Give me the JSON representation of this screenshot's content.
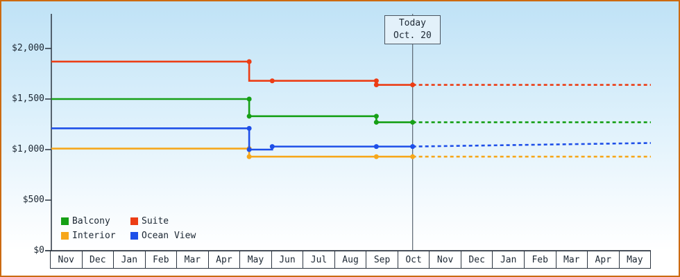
{
  "chart_data": {
    "type": "line",
    "subtype": "step",
    "title": "",
    "grid": false,
    "ylim": [
      0,
      2000
    ],
    "ytick_values": [
      0,
      500,
      1000,
      1500,
      2000
    ],
    "ytick_labels": [
      "$0",
      "$500",
      "$1,000",
      "$1,500",
      "$2,000"
    ],
    "x_months": [
      "Nov",
      "Dec",
      "Jan",
      "Feb",
      "Mar",
      "Apr",
      "May",
      "Jun",
      "Jul",
      "Aug",
      "Sep",
      "Oct",
      "Nov",
      "Dec",
      "Jan",
      "Feb",
      "Mar",
      "Apr",
      "May"
    ],
    "today": {
      "label_line1": "Today",
      "label_line2": "Oct. 20",
      "x_month_index": 11.45
    },
    "axis_color": "#2b3440",
    "today_line_color": "#5a6570",
    "series": [
      {
        "name": "Suite",
        "color": "#ec3d15",
        "solid_points": [
          [
            0,
            1870
          ],
          [
            6.27,
            1870
          ],
          [
            6.27,
            1680
          ],
          [
            10.3,
            1680
          ],
          [
            10.3,
            1640
          ],
          [
            11.45,
            1640
          ]
        ],
        "markers": [
          [
            6.27,
            1870
          ],
          [
            7.0,
            1680
          ],
          [
            10.3,
            1680
          ],
          [
            10.3,
            1640
          ],
          [
            11.45,
            1640
          ]
        ],
        "forecast": [
          [
            11.45,
            1640
          ],
          [
            19,
            1640
          ]
        ]
      },
      {
        "name": "Balcony",
        "color": "#16a016",
        "solid_points": [
          [
            0,
            1500
          ],
          [
            6.27,
            1500
          ],
          [
            6.27,
            1330
          ],
          [
            10.3,
            1330
          ],
          [
            10.3,
            1270
          ],
          [
            11.45,
            1270
          ]
        ],
        "markers": [
          [
            6.27,
            1500
          ],
          [
            6.27,
            1330
          ],
          [
            10.3,
            1330
          ],
          [
            10.3,
            1270
          ],
          [
            11.45,
            1270
          ]
        ],
        "forecast": [
          [
            11.45,
            1270
          ],
          [
            19,
            1270
          ]
        ]
      },
      {
        "name": "Interior",
        "color": "#f6a71b",
        "solid_points": [
          [
            0,
            1010
          ],
          [
            6.27,
            1010
          ],
          [
            6.27,
            930
          ],
          [
            10.3,
            930
          ],
          [
            11.45,
            930
          ]
        ],
        "markers": [
          [
            6.27,
            1010
          ],
          [
            6.27,
            930
          ],
          [
            10.3,
            930
          ],
          [
            11.45,
            930
          ]
        ],
        "forecast": [
          [
            11.45,
            930
          ],
          [
            19,
            930
          ]
        ]
      },
      {
        "name": "Ocean View",
        "color": "#1e4fe8",
        "solid_points": [
          [
            0,
            1210
          ],
          [
            6.27,
            1210
          ],
          [
            6.27,
            1000
          ],
          [
            7.0,
            1000
          ],
          [
            7.0,
            1030
          ],
          [
            10.3,
            1030
          ],
          [
            11.45,
            1030
          ]
        ],
        "markers": [
          [
            6.27,
            1210
          ],
          [
            6.27,
            1000
          ],
          [
            7.0,
            1030
          ],
          [
            10.3,
            1030
          ],
          [
            11.45,
            1030
          ]
        ],
        "forecast": [
          [
            11.45,
            1030
          ],
          [
            19,
            1065
          ]
        ]
      }
    ],
    "legend": [
      {
        "label": "Balcony",
        "color": "#16a016"
      },
      {
        "label": "Suite",
        "color": "#ec3d15"
      },
      {
        "label": "Interior",
        "color": "#f6a71b"
      },
      {
        "label": "Ocean View",
        "color": "#1e4fe8"
      }
    ],
    "legend_position": "bottom-left-inside"
  }
}
